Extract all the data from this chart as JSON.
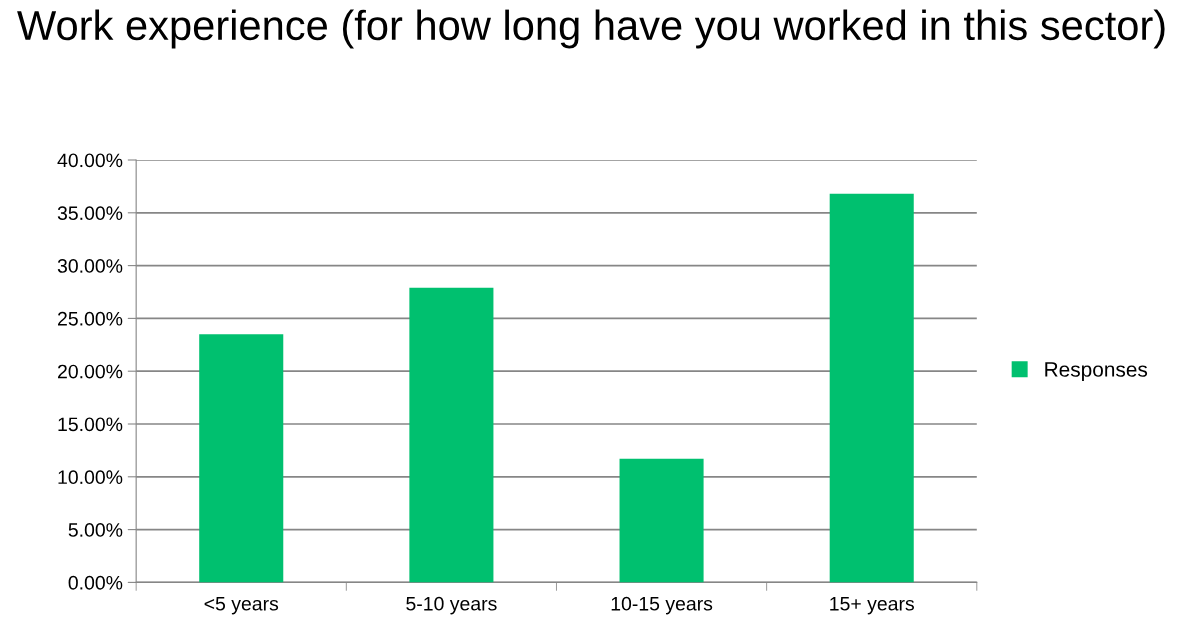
{
  "chart_data": {
    "type": "bar",
    "title": "Work experience (for how long have you worked in this sector)",
    "categories": [
      "<5 years",
      "5-10 years",
      "10-15 years",
      "15+ years"
    ],
    "series": [
      {
        "name": "Responses",
        "color": "#00c06f",
        "values": [
          23.5,
          27.9,
          11.7,
          36.8
        ]
      }
    ],
    "ylim": [
      0,
      40
    ],
    "yticks": [
      {
        "value": 0,
        "label": "0.00%"
      },
      {
        "value": 5,
        "label": "5.00%"
      },
      {
        "value": 10,
        "label": "10.00%"
      },
      {
        "value": 15,
        "label": "15.00%"
      },
      {
        "value": 20,
        "label": "20.00%"
      },
      {
        "value": 25,
        "label": "25.00%"
      },
      {
        "value": 30,
        "label": "30.00%"
      },
      {
        "value": 35,
        "label": "35.00%"
      },
      {
        "value": 40,
        "label": "40.00%"
      }
    ],
    "grid": "y",
    "legend": "right"
  }
}
